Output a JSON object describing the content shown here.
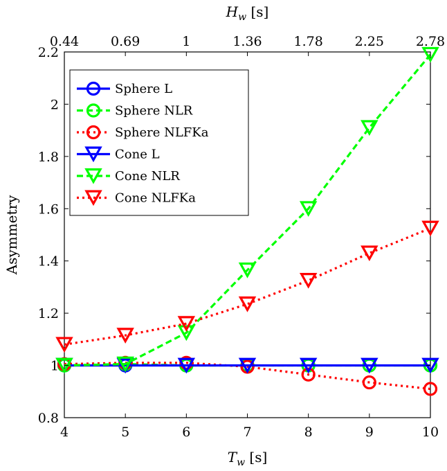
{
  "chart_data": {
    "type": "line",
    "x": [
      4,
      5,
      6,
      7,
      8,
      9,
      10
    ],
    "xlim": [
      4,
      10
    ],
    "ylim": [
      0.8,
      2.2
    ],
    "xticks": [
      "4",
      "5",
      "6",
      "7",
      "8",
      "9",
      "10"
    ],
    "yticks": [
      "0.8",
      "1",
      "1.2",
      "1.4",
      "1.6",
      "1.8",
      "2",
      "2.2"
    ],
    "top_ticks": [
      "0.44",
      "0.69",
      "1",
      "1.36",
      "1.78",
      "2.25",
      "2.78"
    ],
    "xlabel_main": "T",
    "xlabel_sub": "w",
    "xlabel_unit": " [s]",
    "top_label_main": "H",
    "top_label_sub": "w",
    "top_label_unit": " [s]",
    "ylabel": "Asymmetry",
    "legend_position": "top-left",
    "series": [
      {
        "name": "Sphere L",
        "color": "#0000ff",
        "dash": "solid",
        "marker": "circle",
        "values": [
          1.0,
          1.0,
          1.0,
          1.0,
          1.0,
          1.0,
          1.0
        ]
      },
      {
        "name": "Sphere NLR",
        "color": "#00ff00",
        "dash": "dashed",
        "marker": "circle",
        "values": [
          1.0,
          1.005,
          1.0,
          1.0,
          1.0,
          1.0,
          1.0
        ]
      },
      {
        "name": "Sphere NLFKa",
        "color": "#ff0000",
        "dash": "dotted",
        "marker": "circle",
        "values": [
          1.005,
          1.01,
          1.01,
          0.995,
          0.965,
          0.935,
          0.91
        ]
      },
      {
        "name": "Cone L",
        "color": "#0000ff",
        "dash": "solid",
        "marker": "triangle",
        "values": [
          1.0,
          1.0,
          1.0,
          1.0,
          1.0,
          1.0,
          1.0
        ]
      },
      {
        "name": "Cone NLR",
        "color": "#00ff00",
        "dash": "dashed",
        "marker": "triangle",
        "values": [
          1.0,
          1.005,
          1.125,
          1.365,
          1.6,
          1.91,
          2.19
        ]
      },
      {
        "name": "Cone NLFKa",
        "color": "#ff0000",
        "dash": "dotted",
        "marker": "triangle",
        "values": [
          1.08,
          1.115,
          1.16,
          1.235,
          1.325,
          1.43,
          1.525
        ]
      }
    ]
  }
}
